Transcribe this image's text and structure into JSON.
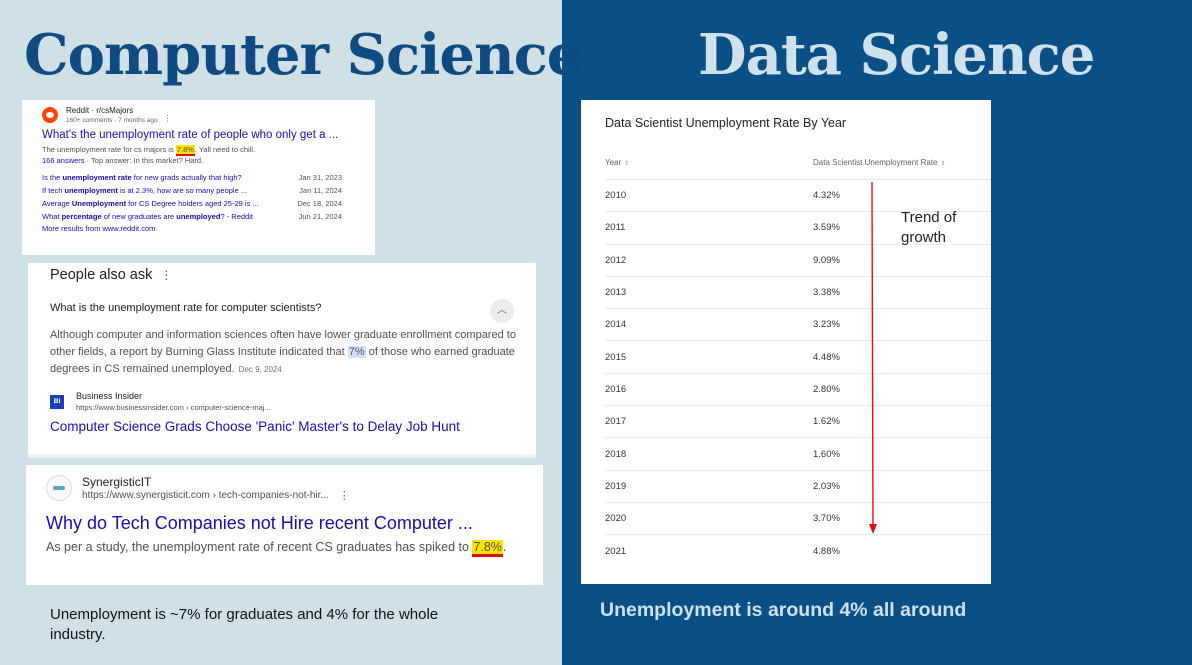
{
  "left": {
    "heading": "Computer Science",
    "reddit": {
      "source": "Reddit · r/csMajors",
      "meta": "160+ comments · 7 months ago",
      "title": "What's the unemployment rate of people who only get a ...",
      "snippet_before": "The unemployment rate for cs majors is ",
      "snippet_highlight": "7.8%",
      "snippet_after": ". Yall need to chill.",
      "answers_link": "166 answers",
      "answers_rest": " · Top answer: In this market? Hard.",
      "related": [
        {
          "pre": "Is the ",
          "bold": "unemployment rate",
          "post": " for new grads actually that high?",
          "date": "Jan 31, 2023"
        },
        {
          "pre": "If tech ",
          "bold": "unemployment",
          "post": " is at 2.3%, how are so many people ...",
          "date": "Jan 11, 2024"
        },
        {
          "pre": "Average ",
          "bold": "Unemployment",
          "post": " for CS Degree holders aged 25-29 is ...",
          "date": "Dec 18, 2024"
        },
        {
          "pre": "What ",
          "bold": "percentage",
          "post": " of new graduates are ",
          "bold2": "unemployed",
          "post2": "? - Reddit",
          "date": "Jun 21, 2024"
        }
      ],
      "more": "More results from www.reddit.com"
    },
    "paa": {
      "title": "People also ask",
      "question": "What is the unemployment rate for computer scientists?",
      "answer_before": "Although computer and information sciences often have lower graduate enrollment compared to other fields, a report by Burning Glass Institute indicated that ",
      "answer_highlight": "7%",
      "answer_after": " of those who earned graduate degrees in CS remained unemployed.",
      "answer_date": "Dec 9, 2024",
      "source_logo": "BI",
      "source_name": "Business Insider",
      "source_url": "https://www.businessinsider.com › computer-science-maj...",
      "link": "Computer Science Grads Choose 'Panic' Master's to Delay Job Hunt"
    },
    "synergistic": {
      "name": "SynergisticIT",
      "url": "https://www.synergisticit.com › tech-companies-not-hir...",
      "title": "Why do Tech Companies not Hire recent Computer ...",
      "snippet_before": "As per a study, the unemployment rate of recent CS graduates has spiked to ",
      "snippet_highlight": "7.8%",
      "snippet_after": "."
    },
    "caption": "Unemployment is ~7% for graduates and 4% for the whole industry."
  },
  "right": {
    "heading": "Data Science",
    "table": {
      "title": "Data Scientist Unemployment Rate By Year",
      "col_year": "Year",
      "col_rate": "Data Scientist Unemployment Rate",
      "rows": [
        {
          "year": "2010",
          "rate": "4.32%"
        },
        {
          "year": "2011",
          "rate": "3.59%"
        },
        {
          "year": "2012",
          "rate": "9.09%"
        },
        {
          "year": "2013",
          "rate": "3.38%"
        },
        {
          "year": "2014",
          "rate": "3.23%"
        },
        {
          "year": "2015",
          "rate": "4.48%"
        },
        {
          "year": "2016",
          "rate": "2.80%"
        },
        {
          "year": "2017",
          "rate": "1.62%"
        },
        {
          "year": "2018",
          "rate": "1.60%"
        },
        {
          "year": "2019",
          "rate": "2.03%"
        },
        {
          "year": "2020",
          "rate": "3.70%"
        },
        {
          "year": "2021",
          "rate": "4.88%"
        }
      ]
    },
    "annotation": "Trend of growth",
    "caption": "Unemployment is around 4% all around"
  },
  "colors": {
    "left_bg": "#cfe0e6",
    "right_bg": "#0b4f87",
    "link_blue": "#1a0dab",
    "highlight_yellow": "#fde400",
    "underline_red": "#e01010",
    "arrow_red": "#e01010"
  },
  "icons": {
    "sort": "sort-arrows-icon",
    "more": "more-vert-icon",
    "chevron": "chevron-up-icon"
  }
}
